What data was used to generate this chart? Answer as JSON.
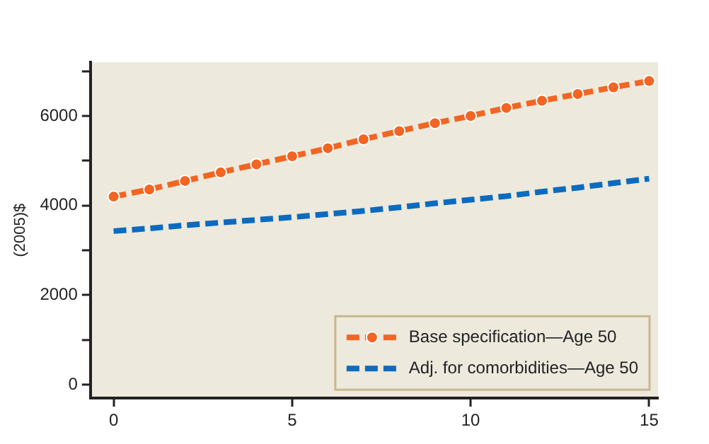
{
  "chart_data": {
    "type": "line",
    "ylabel": "(2005)$",
    "x": [
      0,
      1,
      2,
      3,
      4,
      5,
      6,
      7,
      8,
      9,
      10,
      11,
      12,
      13,
      14,
      15
    ],
    "series": [
      {
        "name": "Base specification—Age 50",
        "color": "#f26522",
        "marker": "circle",
        "line_style": "dashed",
        "values": [
          4200,
          4360,
          4550,
          4740,
          4920,
          5100,
          5280,
          5480,
          5660,
          5840,
          6000,
          6180,
          6340,
          6490,
          6640,
          6780
        ]
      },
      {
        "name": "Adj. for comorbidities—Age 50",
        "color": "#0b6bbf",
        "marker": "none",
        "line_style": "dashed",
        "values": [
          3430,
          3490,
          3560,
          3620,
          3680,
          3740,
          3810,
          3880,
          3960,
          4050,
          4130,
          4210,
          4310,
          4400,
          4500,
          4600
        ]
      }
    ],
    "xlim": [
      -0.65,
      15.25
    ],
    "xticks": [
      0,
      5,
      10,
      15
    ],
    "ylim": [
      -300,
      7200
    ],
    "yticks": [
      0,
      {
        "value": 1000,
        "label": null
      },
      2000,
      {
        "value": 3000,
        "label": null
      },
      4000,
      {
        "value": 5000,
        "label": null
      },
      6000,
      {
        "value": 7000,
        "label": null
      }
    ],
    "grid": false,
    "legend": "bottom right"
  }
}
